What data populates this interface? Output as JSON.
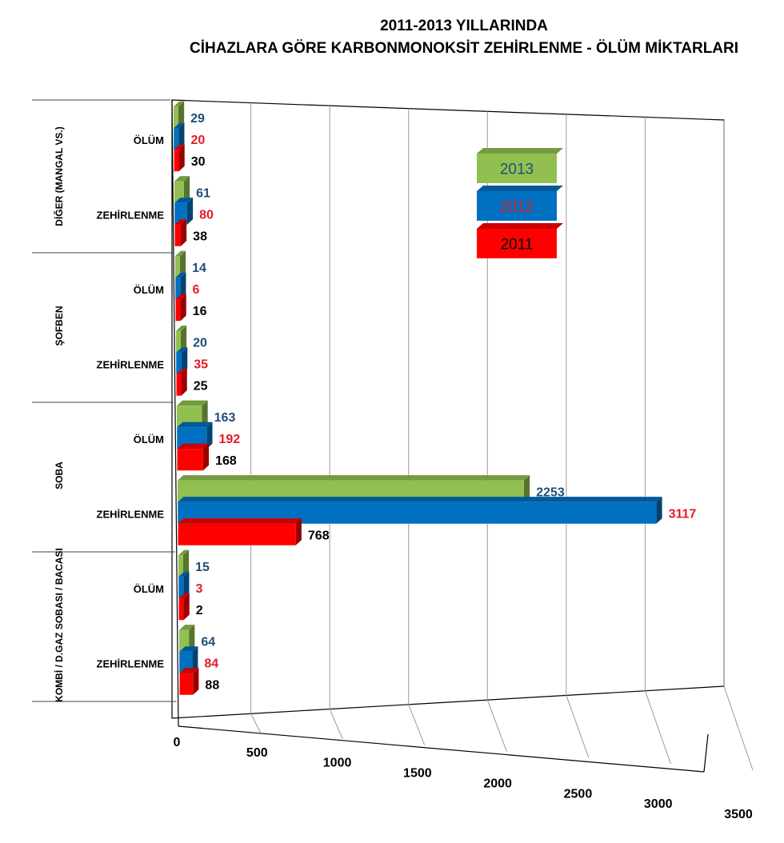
{
  "chart_data": {
    "type": "bar",
    "orientation": "horizontal",
    "title_lines": [
      "2011-2013 YILLARINDA",
      "CİHAZLARA GÖRE KARBONMONOKSİT ZEHİRLENME - ÖLÜM MİKTARLARI"
    ],
    "groups": [
      {
        "name": "DİĞER (MANGAL VS.)",
        "categories": [
          "ÖLÜM",
          "ZEHİRLENME"
        ]
      },
      {
        "name": "ŞOFBEN",
        "categories": [
          "ÖLÜM",
          "ZEHİRLENME"
        ]
      },
      {
        "name": "SOBA",
        "categories": [
          "ÖLÜM",
          "ZEHİRLENME"
        ]
      },
      {
        "name": "KOMBİ  /  D.GAZ SOBASI / BACASI",
        "categories": [
          "ÖLÜM",
          "ZEHİRLENME"
        ]
      }
    ],
    "series": [
      {
        "name": "2013",
        "color": "#92c050",
        "label_color": "#1f4e79",
        "values": [
          29,
          61,
          14,
          20,
          163,
          2253,
          15,
          64
        ]
      },
      {
        "name": "2012",
        "color": "#0070c0",
        "label_color": "#e31b23",
        "values": [
          20,
          80,
          6,
          35,
          192,
          3117,
          3,
          84
        ]
      },
      {
        "name": "2011",
        "color": "#ff0000",
        "label_color": "#000000",
        "values": [
          30,
          38,
          16,
          25,
          168,
          768,
          2,
          88
        ]
      }
    ],
    "x_ticks": [
      "0",
      "500",
      "1000",
      "1500",
      "2000",
      "2500",
      "3000",
      "3500"
    ],
    "xlim": [
      0,
      3500
    ],
    "legend_position": "top-right",
    "grid": true
  }
}
